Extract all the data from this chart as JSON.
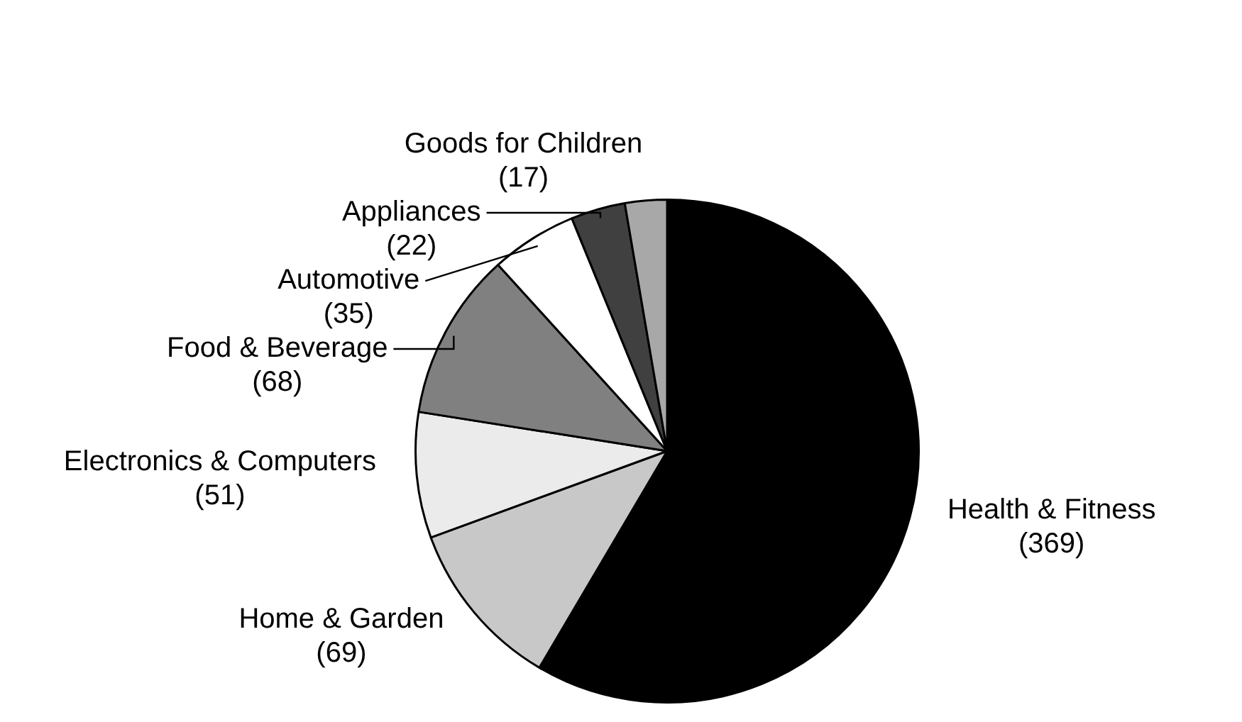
{
  "chart_data": {
    "type": "pie",
    "categories": [
      "Health & Fitness",
      "Home & Garden",
      "Electronics & Computers",
      "Food & Beverage",
      "Automotive",
      "Appliances",
      "Goods for Children"
    ],
    "values": [
      369,
      69,
      51,
      68,
      35,
      22,
      17
    ],
    "colors": [
      "#000000",
      "#c8c8c8",
      "#ebebeb",
      "#808080",
      "#ffffff",
      "#404040",
      "#a8a8a8"
    ],
    "value_labels": [
      "(369)",
      "(69)",
      "(51)",
      "(68)",
      "(35)",
      "(22)",
      "(17)"
    ],
    "legend": false
  }
}
